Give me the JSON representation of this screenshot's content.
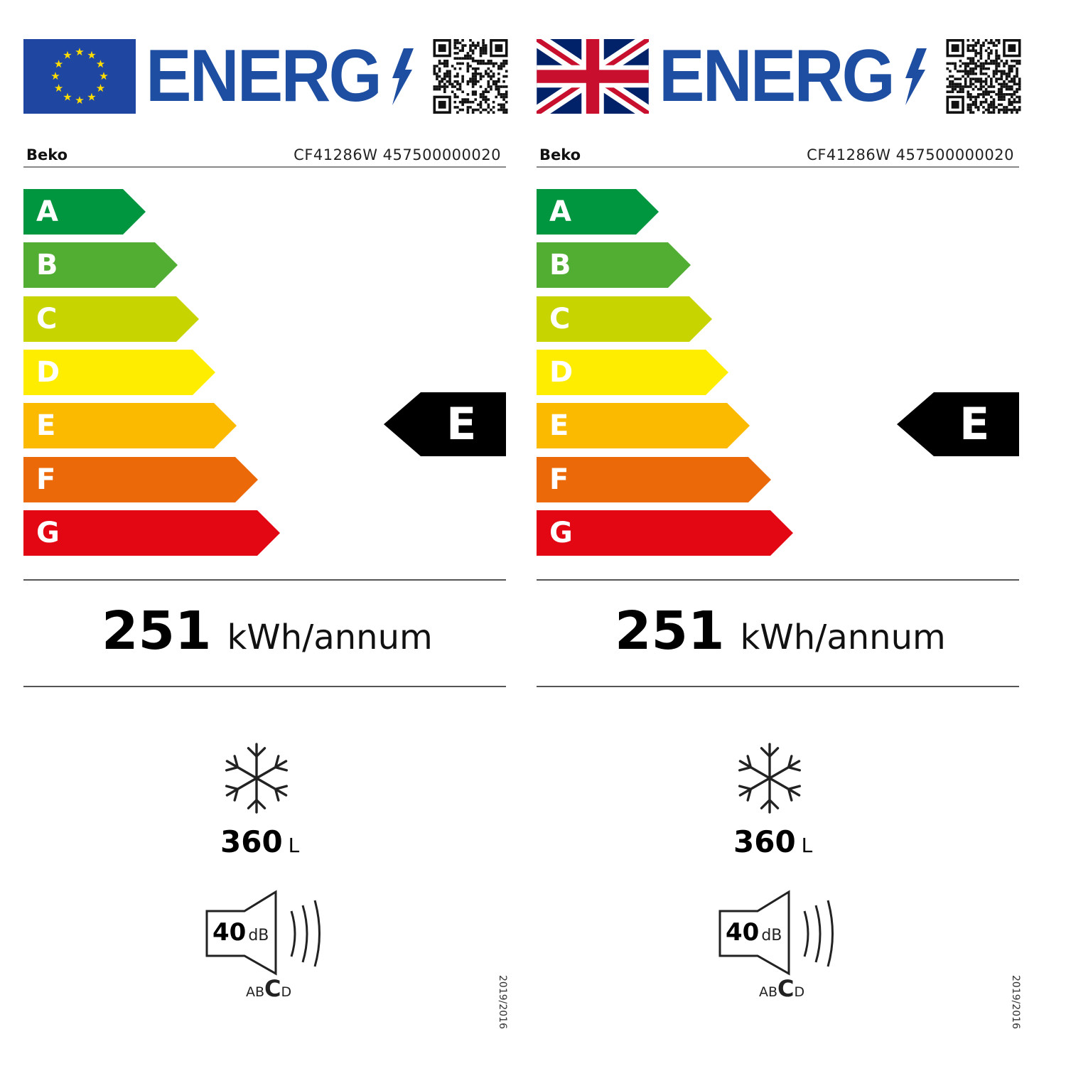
{
  "labels": [
    {
      "region": "EU",
      "flag_icon": "eu-flag-icon",
      "title": "ENERG",
      "supplier": "Beko",
      "model": "CF41286W 457500000020",
      "scale": [
        "A",
        "B",
        "C",
        "D",
        "E",
        "F",
        "G"
      ],
      "rating": "E",
      "consumption_value": "251",
      "consumption_unit": "kWh/annum",
      "freezer_volume": "360",
      "volume_unit": "L",
      "noise_value": "40",
      "noise_unit": "dB",
      "noise_classes": [
        "A",
        "B",
        "C",
        "D"
      ],
      "noise_class": "C",
      "regulation": "2019/2016"
    },
    {
      "region": "UK",
      "flag_icon": "uk-flag-icon",
      "title": "ENERG",
      "supplier": "Beko",
      "model": "CF41286W 457500000020",
      "scale": [
        "A",
        "B",
        "C",
        "D",
        "E",
        "F",
        "G"
      ],
      "rating": "E",
      "consumption_value": "251",
      "consumption_unit": "kWh/annum",
      "freezer_volume": "360",
      "volume_unit": "L",
      "noise_value": "40",
      "noise_unit": "dB",
      "noise_classes": [
        "A",
        "B",
        "C",
        "D"
      ],
      "noise_class": "C",
      "regulation": "2019/2016"
    }
  ],
  "colors": {
    "title_blue": "#1e4ea1",
    "eu_blue": "#1f46a0",
    "eu_star": "#ffdd00",
    "scale": [
      "#009640",
      "#52ae32",
      "#c8d400",
      "#ffed00",
      "#fbba00",
      "#eb6909",
      "#e30613"
    ],
    "rating": "#000000"
  }
}
